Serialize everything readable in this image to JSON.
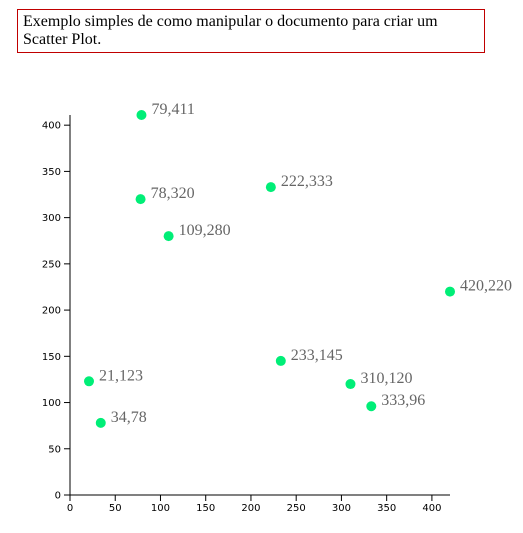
{
  "header": {
    "caption": "Exemplo simples de como manipular o documento para criar um Scatter Plot."
  },
  "colors": {
    "point": "#00ee77",
    "label": "#666666",
    "axis": "#000000",
    "caption_border": "#c00000"
  },
  "chart_data": {
    "type": "scatter",
    "title": "",
    "xlabel": "",
    "ylabel": "",
    "xlim": [
      0,
      420
    ],
    "ylim": [
      0,
      411
    ],
    "x_ticks": [
      0,
      50,
      100,
      150,
      200,
      250,
      300,
      350,
      400
    ],
    "y_ticks": [
      0,
      50,
      100,
      150,
      200,
      250,
      300,
      350,
      400
    ],
    "grid": false,
    "points": [
      {
        "x": 79,
        "y": 411,
        "label": "79,411"
      },
      {
        "x": 78,
        "y": 320,
        "label": "78,320"
      },
      {
        "x": 109,
        "y": 280,
        "label": "109,280"
      },
      {
        "x": 222,
        "y": 333,
        "label": "222,333"
      },
      {
        "x": 420,
        "y": 220,
        "label": "420,220"
      },
      {
        "x": 233,
        "y": 145,
        "label": "233,145"
      },
      {
        "x": 21,
        "y": 123,
        "label": "21,123"
      },
      {
        "x": 310,
        "y": 120,
        "label": "310,120"
      },
      {
        "x": 333,
        "y": 96,
        "label": "333,96"
      },
      {
        "x": 34,
        "y": 78,
        "label": "34,78"
      }
    ]
  }
}
